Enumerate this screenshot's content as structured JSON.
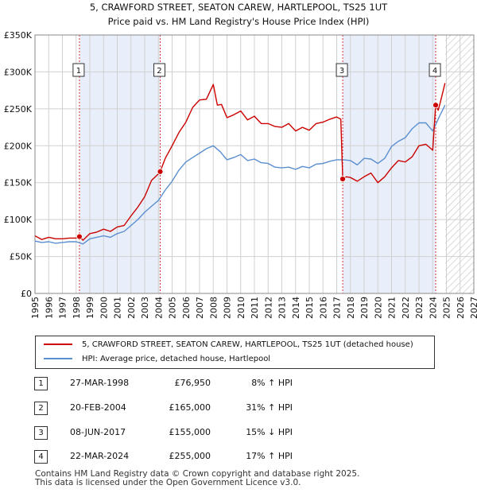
{
  "chart_data": {
    "type": "line",
    "title": "5, CRAWFORD STREET, SEATON CAREW, HARTLEPOOL, TS25 1UT",
    "subtitle": "Price paid vs. HM Land Registry's House Price Index (HPI)",
    "xlabel": "",
    "ylabel": "",
    "xlim": [
      1995,
      2027
    ],
    "ylim": [
      0,
      350000
    ],
    "y_ticks": [
      0,
      50000,
      100000,
      150000,
      200000,
      250000,
      300000,
      350000
    ],
    "y_tick_labels": [
      "£0",
      "£50K",
      "£100K",
      "£150K",
      "£200K",
      "£250K",
      "£300K",
      "£350K"
    ],
    "x_ticks": [
      1995,
      1996,
      1997,
      1998,
      1999,
      2000,
      2001,
      2002,
      2003,
      2004,
      2005,
      2006,
      2007,
      2008,
      2009,
      2010,
      2011,
      2012,
      2013,
      2014,
      2015,
      2016,
      2017,
      2018,
      2019,
      2020,
      2021,
      2022,
      2023,
      2024,
      2025,
      2026,
      2027
    ],
    "grid": true,
    "forecast_from": 2024.9,
    "series": [
      {
        "name": "5, CRAWFORD STREET, SEATON CAREW, HARTLEPOOL, TS25 1UT (detached house)",
        "color": "#cc0000",
        "x": [
          1995.0,
          1995.5,
          1996.0,
          1996.5,
          1997.0,
          1997.5,
          1998.0,
          1998.24,
          1998.5,
          1999.0,
          1999.5,
          2000.0,
          2000.5,
          2001.0,
          2001.5,
          2002.0,
          2002.5,
          2003.0,
          2003.5,
          2004.0,
          2004.13,
          2004.5,
          2005.0,
          2005.5,
          2006.0,
          2006.5,
          2007.0,
          2007.5,
          2008.0,
          2008.3,
          2008.6,
          2009.0,
          2009.5,
          2010.0,
          2010.5,
          2011.0,
          2011.5,
          2012.0,
          2012.5,
          2013.0,
          2013.5,
          2014.0,
          2014.5,
          2015.0,
          2015.5,
          2016.0,
          2016.5,
          2017.0,
          2017.3,
          2017.44,
          2017.7,
          2018.0,
          2018.5,
          2019.0,
          2019.5,
          2020.0,
          2020.5,
          2021.0,
          2021.5,
          2022.0,
          2022.5,
          2023.0,
          2023.5,
          2024.0,
          2024.22,
          2024.4,
          2024.6,
          2024.9
        ],
        "y": [
          78000,
          73000,
          76000,
          74000,
          74000,
          75000,
          75000,
          76950,
          72000,
          81000,
          83000,
          87000,
          84000,
          90000,
          92000,
          105000,
          117000,
          131000,
          153000,
          162000,
          165000,
          183000,
          200000,
          218000,
          232000,
          252000,
          262000,
          263000,
          283000,
          255000,
          256000,
          238000,
          242000,
          247000,
          235000,
          240000,
          230000,
          230000,
          226000,
          225000,
          230000,
          220000,
          225000,
          221000,
          230000,
          232000,
          236000,
          239000,
          236000,
          155000,
          158000,
          157000,
          152000,
          158000,
          163000,
          150000,
          158000,
          170000,
          180000,
          178000,
          185000,
          200000,
          202000,
          194000,
          255000,
          248000,
          262000,
          285000
        ]
      },
      {
        "name": "HPI: Average price, detached house, Hartlepool",
        "color": "#5b8fd0",
        "x": [
          1995.0,
          1995.5,
          1996.0,
          1996.5,
          1997.0,
          1997.5,
          1998.0,
          1998.5,
          1999.0,
          1999.5,
          2000.0,
          2000.5,
          2001.0,
          2001.5,
          2002.0,
          2002.5,
          2003.0,
          2003.5,
          2004.0,
          2004.5,
          2005.0,
          2005.5,
          2006.0,
          2006.5,
          2007.0,
          2007.5,
          2008.0,
          2008.5,
          2009.0,
          2009.5,
          2010.0,
          2010.5,
          2011.0,
          2011.5,
          2012.0,
          2012.5,
          2013.0,
          2013.5,
          2014.0,
          2014.5,
          2015.0,
          2015.5,
          2016.0,
          2016.5,
          2017.0,
          2017.5,
          2018.0,
          2018.5,
          2019.0,
          2019.5,
          2020.0,
          2020.5,
          2021.0,
          2021.5,
          2022.0,
          2022.5,
          2023.0,
          2023.5,
          2024.0,
          2024.5,
          2024.9
        ],
        "y": [
          71000,
          69000,
          70000,
          68000,
          69000,
          70000,
          70000,
          67000,
          74000,
          76000,
          78000,
          76000,
          81000,
          84000,
          92000,
          100000,
          110000,
          118000,
          126000,
          140000,
          152000,
          167000,
          178000,
          184000,
          190000,
          196000,
          200000,
          192000,
          181000,
          184000,
          188000,
          180000,
          182000,
          177000,
          176000,
          171000,
          170000,
          171000,
          168000,
          172000,
          170000,
          175000,
          176000,
          179000,
          181000,
          181000,
          180000,
          174000,
          183000,
          182000,
          176000,
          183000,
          199000,
          206000,
          211000,
          223000,
          231000,
          231000,
          220000,
          240000,
          255000
        ]
      }
    ],
    "markers": [
      {
        "id": "1",
        "x": 1998.24,
        "y": 76950
      },
      {
        "id": "2",
        "x": 2004.13,
        "y": 165000
      },
      {
        "id": "3",
        "x": 2017.44,
        "y": 155000
      },
      {
        "id": "4",
        "x": 2024.22,
        "y": 255000
      }
    ]
  },
  "legend": {
    "property_label": "5, CRAWFORD STREET, SEATON CAREW, HARTLEPOOL, TS25 1UT (detached house)",
    "hpi_label": "HPI: Average price, detached house, Hartlepool"
  },
  "transactions": [
    {
      "num": "1",
      "date": "27-MAR-1998",
      "price": "£76,950",
      "hpi": "8% ↑ HPI"
    },
    {
      "num": "2",
      "date": "20-FEB-2004",
      "price": "£165,000",
      "hpi": "31% ↑ HPI"
    },
    {
      "num": "3",
      "date": "08-JUN-2017",
      "price": "£155,000",
      "hpi": "15% ↓ HPI"
    },
    {
      "num": "4",
      "date": "22-MAR-2024",
      "price": "£255,000",
      "hpi": "17% ↑ HPI"
    }
  ],
  "footer": {
    "line1": "Contains HM Land Registry data © Crown copyright and database right 2025.",
    "line2": "This data is licensed under the Open Government Licence v3.0."
  }
}
